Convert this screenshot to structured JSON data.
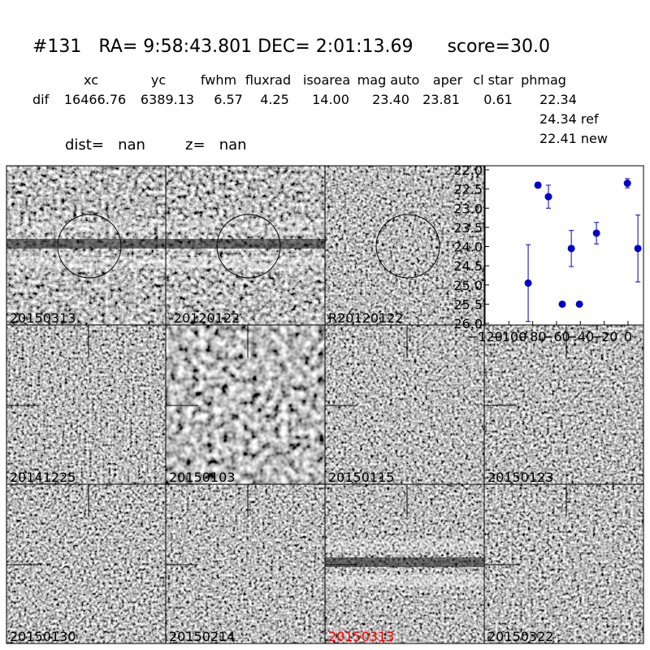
{
  "header": {
    "title": "#131   RA= 9:58:43.801 DEC= 2:01:13.69      score=30.0"
  },
  "table": {
    "columns": [
      "xc",
      "yc",
      "fwhm",
      "fluxrad",
      "isoarea",
      "mag auto",
      "aper",
      "cl star",
      "phmag"
    ],
    "rows": [
      {
        "label": "dif",
        "cells": [
          "16466.76",
          "6389.13",
          "6.57",
          "4.25",
          "14.00",
          "23.40",
          "23.81",
          "0.61",
          "22.34"
        ]
      }
    ],
    "notes": [
      "24.34 ref",
      "22.41 new"
    ]
  },
  "info": {
    "dist": "dist=   nan",
    "z": "z=   nan"
  },
  "panels": [
    {
      "label": "20150313"
    },
    {
      "label": "-20120122"
    },
    {
      "label": "R20120122"
    },
    {
      "label": "20141225"
    },
    {
      "label": "20150103"
    },
    {
      "label": "20150115"
    },
    {
      "label": "20150123"
    },
    {
      "label": "20150130"
    },
    {
      "label": "20150214"
    },
    {
      "label": "20150313",
      "color": "#ff0000"
    },
    {
      "label": "20150322"
    }
  ],
  "chart_data": {
    "type": "scatter",
    "color": "#0000cc",
    "x": [
      -83.8,
      -75.6,
      -66.8,
      -55.2,
      -47.6,
      -40.8,
      -26.5,
      -0.5,
      8.3
    ],
    "values": [
      24.95,
      22.4,
      22.7,
      25.5,
      24.05,
      25.5,
      23.65,
      22.35,
      24.05
    ],
    "errors": [
      1.0,
      0.07,
      0.3,
      0.05,
      0.47,
      0.05,
      0.28,
      0.12,
      0.87
    ],
    "xlim": [
      -120,
      13
    ],
    "ylim": [
      26.0,
      22.0
    ],
    "xticks": [
      {
        "value": -120,
        "label": "−120"
      },
      {
        "value": -100,
        "label": "−100"
      },
      {
        "value": -80,
        "label": "−80"
      },
      {
        "value": -60,
        "label": "−60"
      },
      {
        "value": -40,
        "label": "−40"
      },
      {
        "value": -20,
        "label": "−20"
      },
      0
    ],
    "yticks": [
      {
        "value": 22,
        "label": "22.0"
      },
      22.5,
      {
        "value": 23,
        "label": "23.0"
      },
      23.5,
      {
        "value": 24,
        "label": "24.0"
      },
      24.5,
      {
        "value": 25,
        "label": "25.0"
      },
      25.5,
      {
        "value": 26,
        "label": "26.0"
      }
    ]
  }
}
